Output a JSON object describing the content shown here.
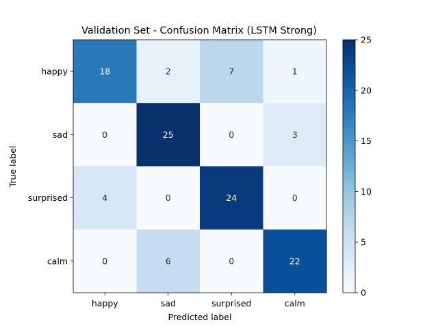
{
  "chart_data": {
    "type": "heatmap",
    "title": "Validation Set - Confusion Matrix (LSTM Strong)",
    "xlabel": "Predicted label",
    "ylabel": "True label",
    "x_categories": [
      "happy",
      "sad",
      "surprised",
      "calm"
    ],
    "y_categories": [
      "happy",
      "sad",
      "surprised",
      "calm"
    ],
    "values": [
      [
        18,
        2,
        7,
        1
      ],
      [
        0,
        25,
        0,
        3
      ],
      [
        4,
        0,
        24,
        0
      ],
      [
        0,
        6,
        0,
        22
      ]
    ],
    "colormap": "Blues",
    "colorbar": {
      "min": 0,
      "max": 25,
      "ticks": [
        0,
        5,
        10,
        15,
        20,
        25
      ]
    },
    "colors": {
      "text_dark_cell": "#ffffff",
      "text_light_cell": "#08306b"
    }
  }
}
